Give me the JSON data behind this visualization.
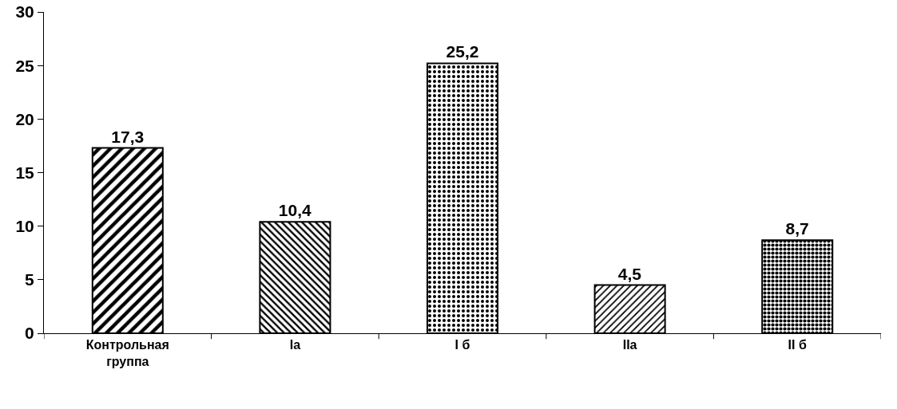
{
  "chart_data": {
    "type": "bar",
    "categories": [
      "Контрольная группа",
      "Ia",
      "I б",
      "IIa",
      "II б"
    ],
    "values": [
      17.3,
      10.4,
      25.2,
      4.5,
      8.7
    ],
    "value_labels": [
      "17,3",
      "10,4",
      "25,2",
      "4,5",
      "8,7"
    ],
    "color": "#000000",
    "ylim": [
      0,
      30
    ],
    "yticks": [
      0,
      5,
      10,
      15,
      20,
      25,
      30
    ],
    "grid": false
  }
}
